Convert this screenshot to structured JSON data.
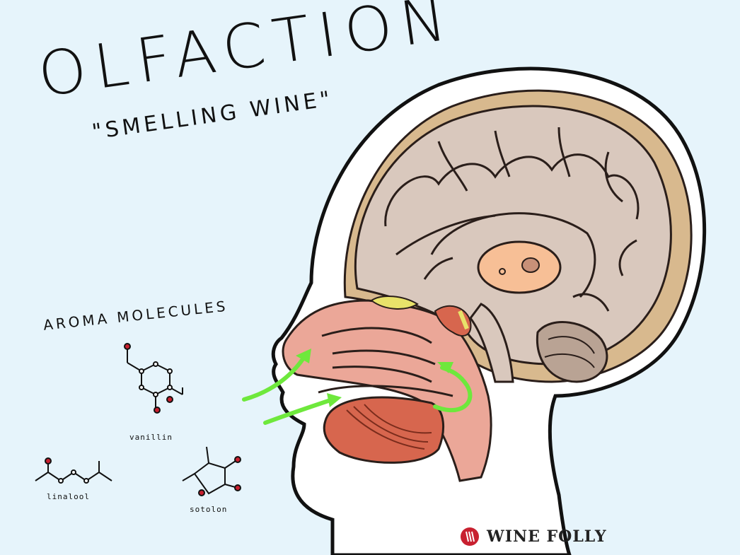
{
  "title": "OLFACTION",
  "subtitle": "\"SMELLING WINE\"",
  "aroma_section": {
    "label": "AROMA MOLECULES",
    "molecules": [
      {
        "name": "vanillin"
      },
      {
        "name": "linalool"
      },
      {
        "name": "sotolon"
      }
    ]
  },
  "brand": {
    "name": "WINE FOLLY",
    "color": "#c8202f"
  },
  "colors": {
    "background": "#e6f4fb",
    "skin": "#ffffff",
    "skull": "#d8b98e",
    "brain": "#d9c8bd",
    "brain_outline": "#2a1e1a",
    "nasal": "#eba798",
    "tongue": "#d7664e",
    "arrows": "#6ee83c",
    "thalamus": "#f7bf96",
    "olfactory_bulb": "#e8e26a"
  }
}
